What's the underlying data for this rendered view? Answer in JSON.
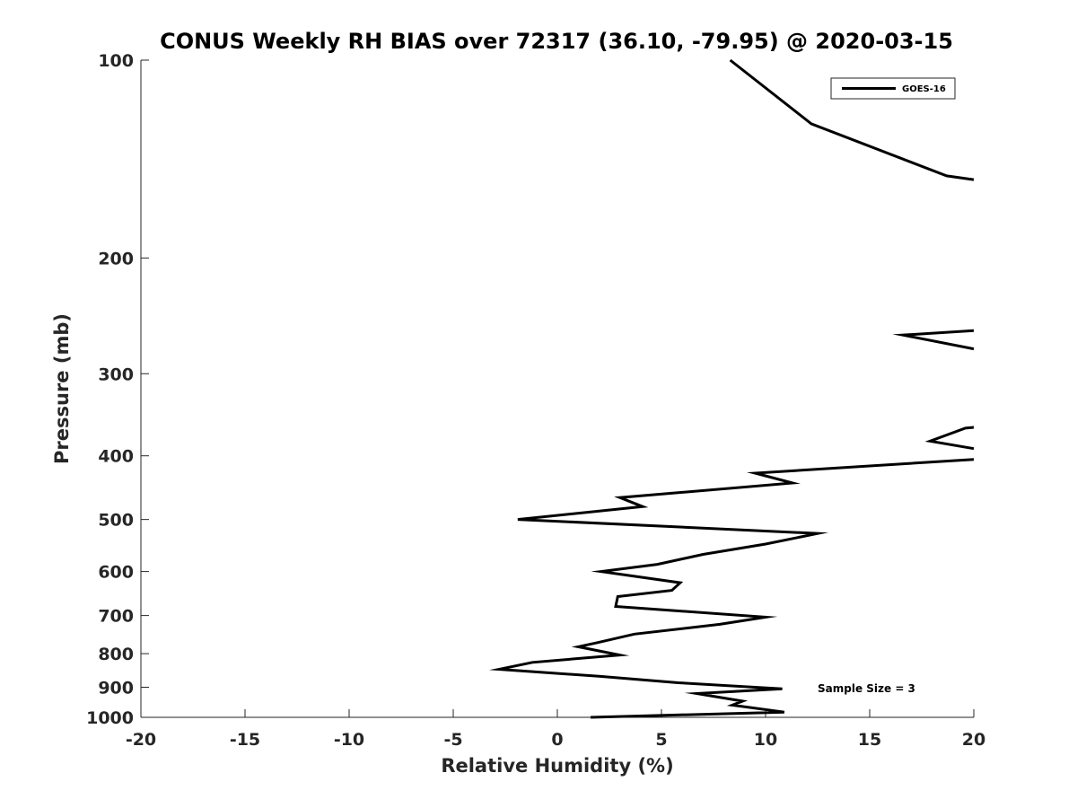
{
  "chart_data": {
    "type": "line",
    "title": "CONUS Weekly RH BIAS over 72317 (36.10, -79.95) @ 2020-03-15",
    "xlabel": "Relative Humidity (%)",
    "ylabel": "Pressure (mb)",
    "xlim": [
      -20,
      20
    ],
    "ylim": [
      100,
      1000
    ],
    "y_scale": "log",
    "y_reversed": true,
    "x_ticks": [
      "-20",
      "-15",
      "-10",
      "-5",
      "0",
      "5",
      "10",
      "15",
      "20"
    ],
    "y_ticks": [
      "100",
      "200",
      "300",
      "400",
      "500",
      "600",
      "700",
      "800",
      "900",
      "1000"
    ],
    "grid": false,
    "legend": {
      "position": "top-right",
      "entries": [
        "GOES-16"
      ]
    },
    "annotation": "Sample Size = 3",
    "series": [
      {
        "name": "GOES-16",
        "color": "#000000",
        "points": [
          [
            8.3,
            100
          ],
          [
            12.2,
            125
          ],
          [
            18.7,
            150
          ],
          [
            20.0,
            152
          ],
          null,
          [
            20.0,
            258
          ],
          [
            16.6,
            262
          ],
          [
            20.0,
            275
          ],
          null,
          [
            20.0,
            362
          ],
          [
            19.6,
            363
          ],
          [
            17.9,
            380
          ],
          [
            20.0,
            390
          ],
          null,
          [
            20.0,
            405
          ],
          [
            9.5,
            425
          ],
          [
            11.3,
            440
          ],
          [
            3.0,
            463
          ],
          [
            4.1,
            478
          ],
          [
            -1.9,
            500
          ],
          [
            12.5,
            525
          ],
          [
            10.0,
            545
          ],
          [
            7.0,
            565
          ],
          [
            4.8,
            585
          ],
          [
            2.1,
            600
          ],
          [
            5.9,
            624
          ],
          [
            5.5,
            641
          ],
          [
            2.9,
            655
          ],
          [
            2.8,
            678
          ],
          [
            10.0,
            704
          ],
          [
            7.8,
            722
          ],
          [
            3.7,
            747
          ],
          [
            1.9,
            770
          ],
          [
            1.0,
            781
          ],
          [
            3.0,
            804
          ],
          [
            -1.2,
            825
          ],
          [
            -2.8,
            845
          ],
          [
            2.0,
            866
          ],
          [
            5.8,
            886
          ],
          [
            10.8,
            905
          ],
          [
            6.7,
            920
          ],
          [
            8.9,
            945
          ],
          [
            8.4,
            958
          ],
          [
            10.9,
            982
          ],
          [
            1.6,
            1000
          ]
        ]
      }
    ]
  }
}
